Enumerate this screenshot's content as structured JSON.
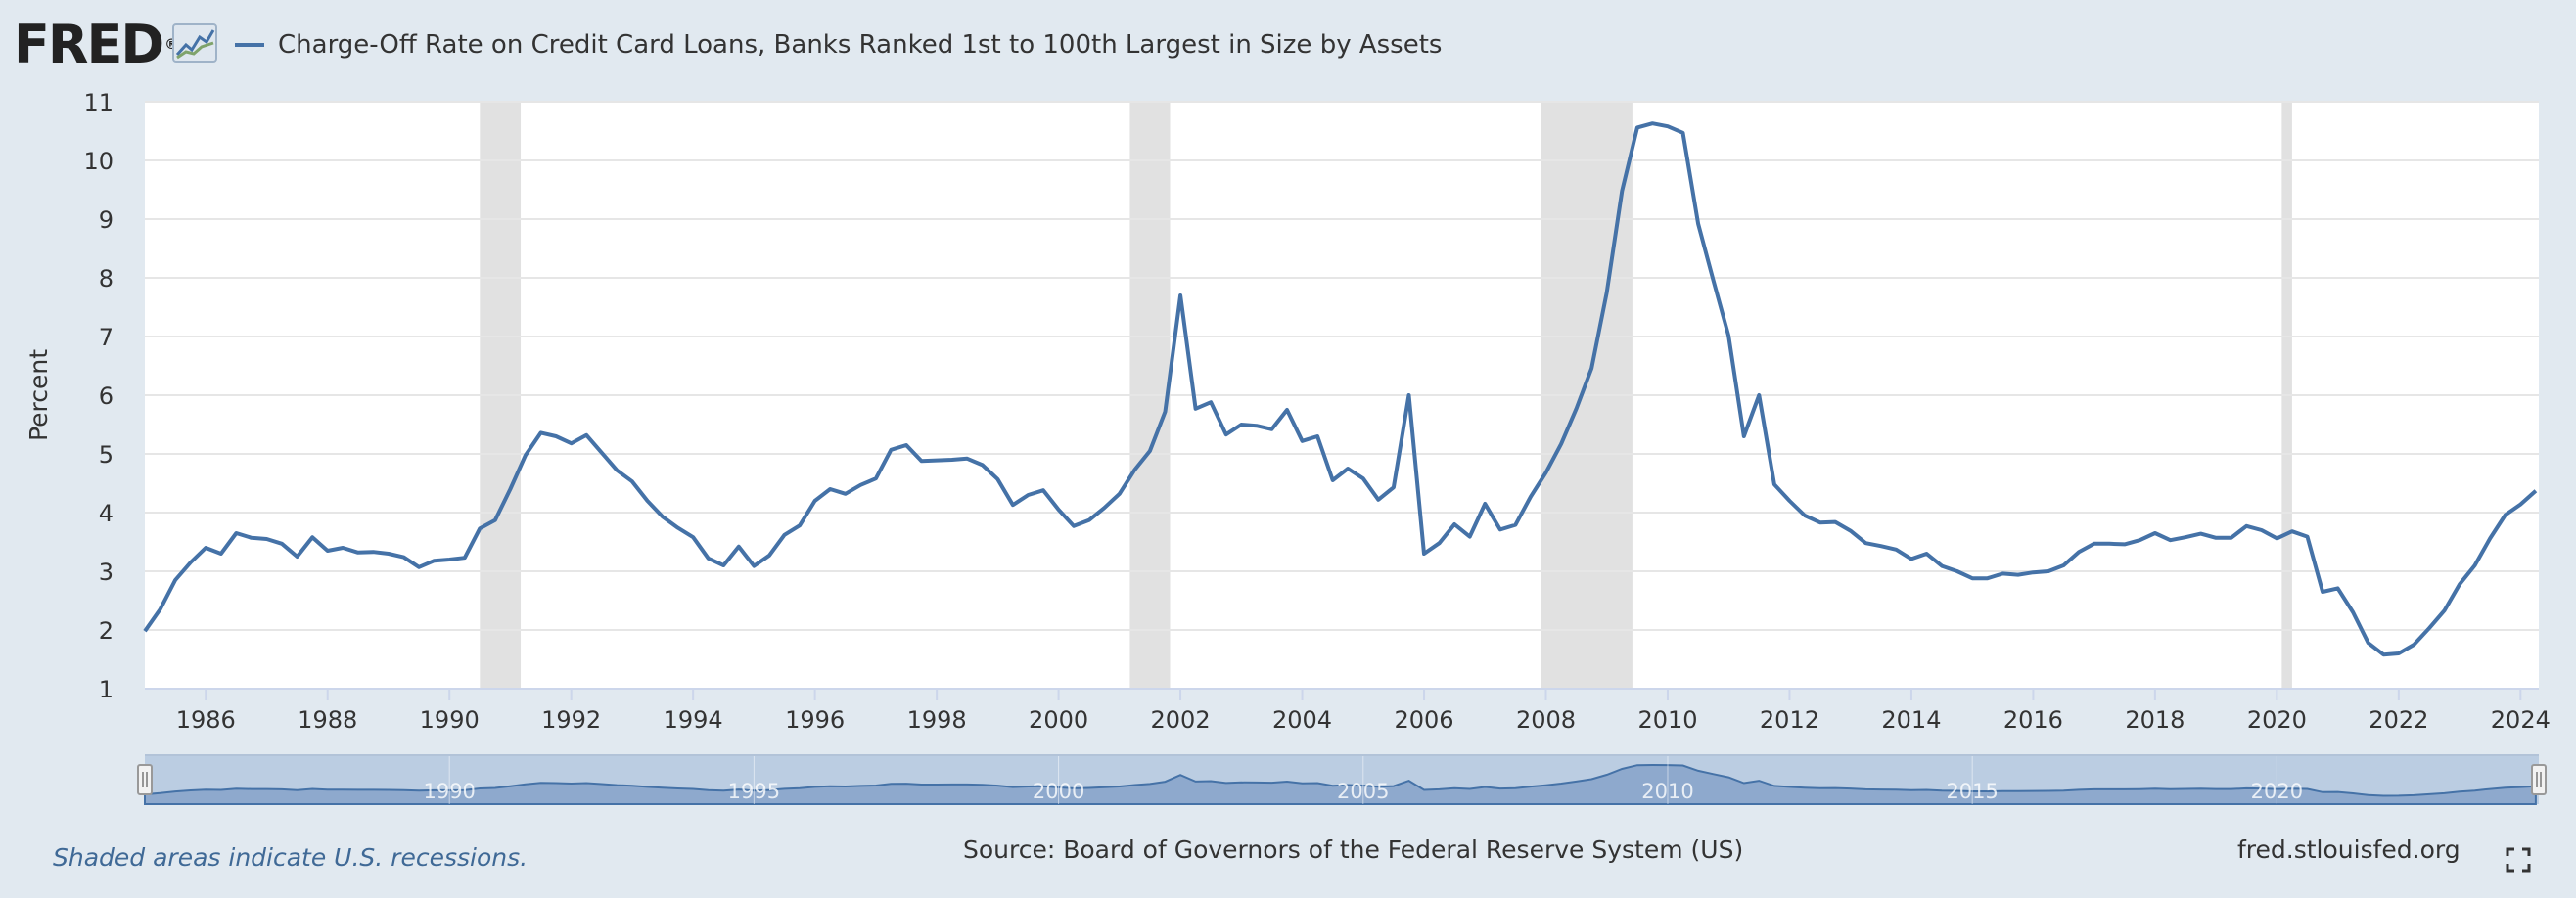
{
  "header": {
    "logo_text": "FRED",
    "logo_reg": "®",
    "logo_icon": "chart-line-icon"
  },
  "footer": {
    "recession_note": "Shaded areas indicate U.S. recessions.",
    "source": "Source: Board of Governors of the Federal Reserve System (US)",
    "site": "fred.stlouisfed.org",
    "fullscreen_icon": "fullscreen-icon"
  },
  "colors": {
    "line": "#4572a7",
    "recession": "#e1e1e1",
    "navigator_fill": "#7f9cc6",
    "background": "#e1e9f0"
  },
  "chart_data": {
    "type": "line",
    "title": "",
    "xlabel": "",
    "ylabel": "Percent",
    "ylim": [
      1,
      11
    ],
    "yticks": [
      1,
      2,
      3,
      4,
      5,
      6,
      7,
      8,
      9,
      10,
      11
    ],
    "xlim": [
      1985.0,
      2024.3
    ],
    "xticks": [
      "1986",
      "1988",
      "1990",
      "1992",
      "1994",
      "1996",
      "1998",
      "2000",
      "2002",
      "2004",
      "2006",
      "2008",
      "2010",
      "2012",
      "2014",
      "2016",
      "2018",
      "2020",
      "2022",
      "2024"
    ],
    "navigator_labels": [
      "1990",
      "1995",
      "2000",
      "2005",
      "2010",
      "2015",
      "2020"
    ],
    "grid": true,
    "legend_position": "top-left",
    "recessions": [
      [
        1990.5,
        1991.17
      ],
      [
        2001.17,
        2001.83
      ],
      [
        2007.92,
        2009.42
      ],
      [
        2020.08,
        2020.25
      ]
    ],
    "series": [
      {
        "name": "Charge-Off Rate on Credit Card Loans, Banks Ranked 1st to 100th Largest in Size by Assets",
        "x": [
          1985.0,
          1985.25,
          1985.5,
          1985.75,
          1986.0,
          1986.25,
          1986.5,
          1986.75,
          1987.0,
          1987.25,
          1987.5,
          1987.75,
          1988.0,
          1988.25,
          1988.5,
          1988.75,
          1989.0,
          1989.25,
          1989.5,
          1989.75,
          1990.0,
          1990.25,
          1990.5,
          1990.75,
          1991.0,
          1991.25,
          1991.5,
          1991.75,
          1992.0,
          1992.25,
          1992.5,
          1992.75,
          1993.0,
          1993.25,
          1993.5,
          1993.75,
          1994.0,
          1994.25,
          1994.5,
          1994.75,
          1995.0,
          1995.25,
          1995.5,
          1995.75,
          1996.0,
          1996.25,
          1996.5,
          1996.75,
          1997.0,
          1997.25,
          1997.5,
          1997.75,
          1998.0,
          1998.25,
          1998.5,
          1998.75,
          1999.0,
          1999.25,
          1999.5,
          1999.75,
          2000.0,
          2000.25,
          2000.5,
          2000.75,
          2001.0,
          2001.25,
          2001.5,
          2001.75,
          2002.0,
          2002.25,
          2002.5,
          2002.75,
          2003.0,
          2003.25,
          2003.5,
          2003.75,
          2004.0,
          2004.25,
          2004.5,
          2004.75,
          2005.0,
          2005.25,
          2005.5,
          2005.75,
          2006.0,
          2006.25,
          2006.5,
          2006.75,
          2007.0,
          2007.25,
          2007.5,
          2007.75,
          2008.0,
          2008.25,
          2008.5,
          2008.75,
          2009.0,
          2009.25,
          2009.5,
          2009.75,
          2010.0,
          2010.25,
          2010.5,
          2010.75,
          2011.0,
          2011.25,
          2011.5,
          2011.75,
          2012.0,
          2012.25,
          2012.5,
          2012.75,
          2013.0,
          2013.25,
          2013.5,
          2013.75,
          2014.0,
          2014.25,
          2014.5,
          2014.75,
          2015.0,
          2015.25,
          2015.5,
          2015.75,
          2016.0,
          2016.25,
          2016.5,
          2016.75,
          2017.0,
          2017.25,
          2017.5,
          2017.75,
          2018.0,
          2018.25,
          2018.5,
          2018.75,
          2019.0,
          2019.25,
          2019.5,
          2019.75,
          2020.0,
          2020.25,
          2020.5,
          2020.75,
          2021.0,
          2021.25,
          2021.5,
          2021.75,
          2022.0,
          2022.25,
          2022.5,
          2022.75,
          2023.0,
          2023.25,
          2023.5,
          2023.75,
          2024.0,
          2024.25
        ],
        "values": [
          1.98,
          2.35,
          2.85,
          3.15,
          3.4,
          3.3,
          3.65,
          3.57,
          3.55,
          3.47,
          3.25,
          3.58,
          3.35,
          3.4,
          3.32,
          3.33,
          3.3,
          3.24,
          3.07,
          3.18,
          3.2,
          3.23,
          3.73,
          3.87,
          4.4,
          4.98,
          5.36,
          5.3,
          5.18,
          5.32,
          5.02,
          4.72,
          4.53,
          4.2,
          3.93,
          3.74,
          3.58,
          3.22,
          3.1,
          3.42,
          3.09,
          3.27,
          3.62,
          3.78,
          4.2,
          4.4,
          4.32,
          4.47,
          4.58,
          5.07,
          5.15,
          4.88,
          4.89,
          4.9,
          4.92,
          4.81,
          4.57,
          4.13,
          4.3,
          4.38,
          4.05,
          3.77,
          3.87,
          4.08,
          4.32,
          4.73,
          5.05,
          5.72,
          7.7,
          5.77,
          5.88,
          5.33,
          5.5,
          5.48,
          5.42,
          5.75,
          5.22,
          5.3,
          4.55,
          4.75,
          4.58,
          4.22,
          4.43,
          6.0,
          3.3,
          3.48,
          3.8,
          3.59,
          4.15,
          3.71,
          3.79,
          4.27,
          4.68,
          5.17,
          5.77,
          6.46,
          7.75,
          9.48,
          10.56,
          10.63,
          10.58,
          10.47,
          8.92,
          7.95,
          7.01,
          5.3,
          6.0,
          4.48,
          4.2,
          3.95,
          3.83,
          3.84,
          3.69,
          3.48,
          3.43,
          3.37,
          3.21,
          3.3,
          3.09,
          3.0,
          2.88,
          2.88,
          2.96,
          2.94,
          2.98,
          3.0,
          3.1,
          3.33,
          3.47,
          3.47,
          3.46,
          3.53,
          3.65,
          3.53,
          3.58,
          3.64,
          3.57,
          3.57,
          3.77,
          3.7,
          3.56,
          3.68,
          3.59,
          2.65,
          2.71,
          2.3,
          1.78,
          1.58,
          1.6,
          1.75,
          2.03,
          2.33,
          2.78,
          3.1,
          3.56,
          3.96,
          4.14,
          4.37
        ]
      }
    ]
  }
}
